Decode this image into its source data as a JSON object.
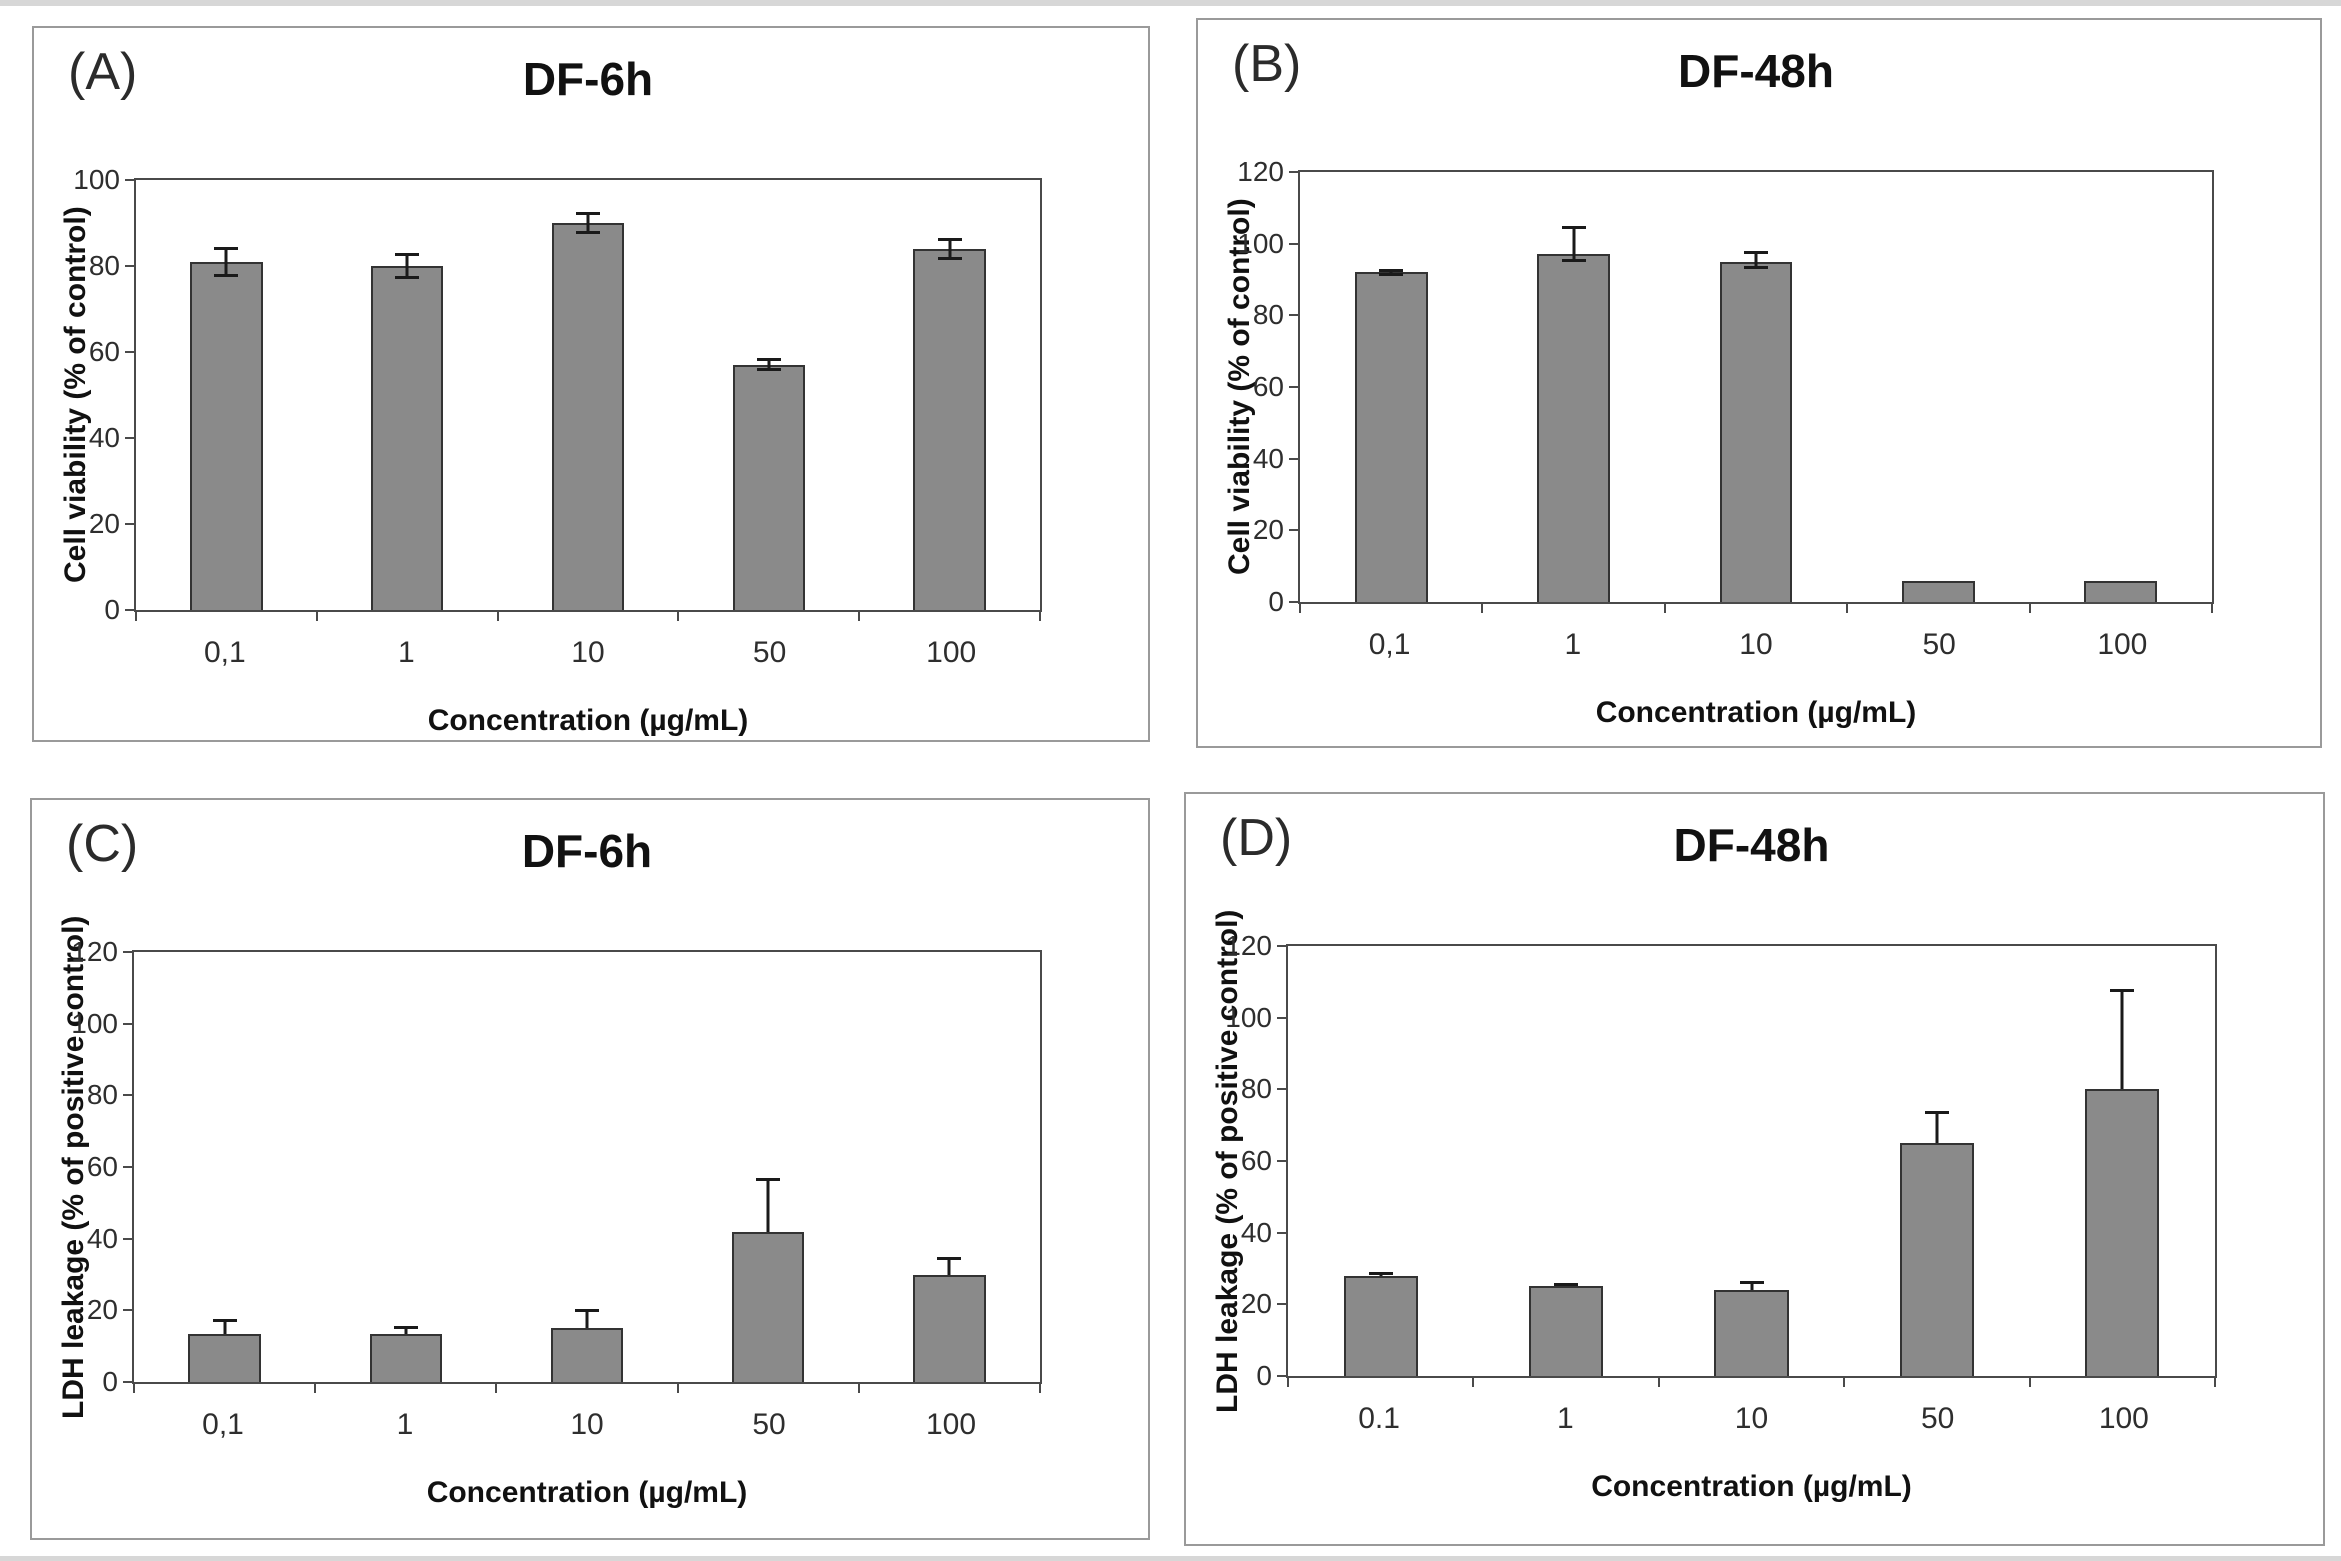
{
  "figure": {
    "background": "#ffffff",
    "bar_fill": "#8a8a8a",
    "bar_border": "#333333",
    "axis_color": "#4a4a4a",
    "error_bar_color": "#1a1a1a",
    "panel_border": "#9a9a9a"
  },
  "chart_data": [
    {
      "panel_label": "(A)",
      "type": "bar",
      "title": "DF-6h",
      "xlabel": "Concentration (µg/mL)",
      "ylabel": "Cell viability (% of control)",
      "ylim": [
        0,
        100
      ],
      "yticks": [
        0,
        20,
        40,
        60,
        80,
        100
      ],
      "grid": false,
      "legend": "none",
      "categories": [
        "0,1",
        "1",
        "10",
        "50",
        "100"
      ],
      "values": [
        81,
        80,
        90,
        57,
        84
      ],
      "errors_up": [
        3.5,
        3,
        2.5,
        1.5,
        2.5
      ],
      "errors_down": [
        3.5,
        3,
        2.5,
        1.5,
        2.5
      ]
    },
    {
      "panel_label": "(B)",
      "type": "bar",
      "title": "DF-48h",
      "xlabel": "Concentration (µg/mL)",
      "ylabel": "Cell viability (% of control)",
      "ylim": [
        0,
        120
      ],
      "yticks": [
        0,
        20,
        40,
        60,
        80,
        100,
        120
      ],
      "grid": false,
      "legend": "none",
      "categories": [
        "0,1",
        "1",
        "10",
        "50",
        "100"
      ],
      "values": [
        92,
        97,
        95,
        6,
        6
      ],
      "errors_up": [
        1,
        8,
        3,
        0,
        0
      ],
      "errors_down": [
        1,
        2,
        2,
        0,
        0
      ]
    },
    {
      "panel_label": "(C)",
      "type": "bar",
      "title": "DF-6h",
      "xlabel": "Concentration (µg/mL)",
      "ylabel": "LDH leakage (% of positive control)",
      "ylim": [
        0,
        120
      ],
      "yticks": [
        0,
        20,
        40,
        60,
        80,
        100,
        120
      ],
      "grid": false,
      "legend": "none",
      "categories": [
        "0,1",
        "1",
        "10",
        "50",
        "100"
      ],
      "values": [
        13.5,
        13.5,
        15,
        42,
        30
      ],
      "errors_up": [
        4,
        2,
        5.5,
        15,
        5
      ],
      "errors_down": [
        0,
        0,
        0,
        0,
        0
      ]
    },
    {
      "panel_label": "(D)",
      "type": "bar",
      "title": "DF-48h",
      "xlabel": "Concentration (µg/mL)",
      "ylabel": "LDH leakage (% of positive control)",
      "ylim": [
        0,
        120
      ],
      "yticks": [
        0,
        20,
        40,
        60,
        80,
        100,
        120
      ],
      "grid": false,
      "legend": "none",
      "categories": [
        "0.1",
        "1",
        "10",
        "50",
        "100"
      ],
      "values": [
        28,
        25,
        24,
        65,
        80
      ],
      "errors_up": [
        1,
        1,
        2.5,
        9,
        28
      ],
      "errors_down": [
        0,
        0,
        0,
        0,
        0
      ]
    }
  ]
}
